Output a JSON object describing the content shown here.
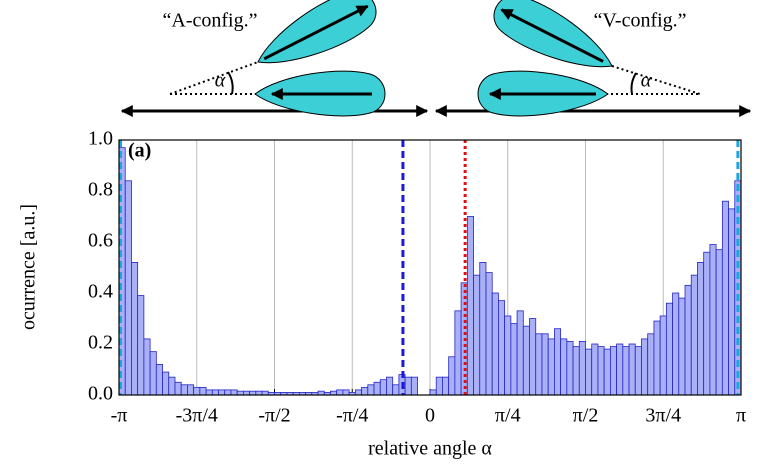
{
  "chart_data": {
    "type": "histogram",
    "panel_label": "(a)",
    "xlabel": "relative angle α",
    "ylabel": "ocurrence [a.u.]",
    "bins": [
      -1,
      -0.98,
      -0.96,
      -0.94,
      -0.92,
      -0.9,
      -0.88,
      -0.86,
      -0.84,
      -0.82,
      -0.8,
      -0.78,
      -0.76,
      -0.74,
      -0.72,
      -0.7,
      -0.68,
      -0.66,
      -0.64,
      -0.62,
      -0.6,
      -0.58,
      -0.56,
      -0.54,
      -0.52,
      -0.5,
      -0.48,
      -0.46,
      -0.44,
      -0.42,
      -0.4,
      -0.38,
      -0.36,
      -0.34,
      -0.32,
      -0.3,
      -0.28,
      -0.26,
      -0.24,
      -0.22,
      -0.2,
      -0.18,
      -0.16,
      -0.14,
      -0.12,
      -0.1,
      -0.08,
      -0.06,
      -0.04,
      -0.02,
      0,
      0.02,
      0.04,
      0.06,
      0.08,
      0.1,
      0.12,
      0.14,
      0.16,
      0.18,
      0.2,
      0.22,
      0.24,
      0.26,
      0.28,
      0.3,
      0.32,
      0.34,
      0.36,
      0.38,
      0.4,
      0.42,
      0.44,
      0.46,
      0.48,
      0.5,
      0.52,
      0.54,
      0.56,
      0.58,
      0.6,
      0.62,
      0.64,
      0.66,
      0.68,
      0.7,
      0.72,
      0.74,
      0.76,
      0.78,
      0.8,
      0.82,
      0.84,
      0.86,
      0.88,
      0.9,
      0.92,
      0.94,
      0.96,
      0.98,
      1
    ],
    "values": [
      0.97,
      0.84,
      0.52,
      0.39,
      0.22,
      0.17,
      0.12,
      0.09,
      0.07,
      0.05,
      0.04,
      0.04,
      0.03,
      0.03,
      0.02,
      0.02,
      0.02,
      0.02,
      0.02,
      0.015,
      0.015,
      0.015,
      0.015,
      0.015,
      0.01,
      0.01,
      0.01,
      0.01,
      0.01,
      0.01,
      0.01,
      0.01,
      0.015,
      0.01,
      0.015,
      0.02,
      0.02,
      0.01,
      0.02,
      0.03,
      0.04,
      0.05,
      0.06,
      0.07,
      0.04,
      0.08,
      0.07,
      0.07,
      0,
      0,
      0.02,
      0.07,
      0.07,
      0.15,
      0.33,
      0.44,
      0.7,
      0.47,
      0.52,
      0.48,
      0.4,
      0.37,
      0.31,
      0.28,
      0.33,
      0.27,
      0.3,
      0.24,
      0.24,
      0.22,
      0.26,
      0.22,
      0.21,
      0.19,
      0.21,
      0.18,
      0.2,
      0.19,
      0.18,
      0.19,
      0.2,
      0.19,
      0.2,
      0.19,
      0.22,
      0.24,
      0.29,
      0.31,
      0.36,
      0.4,
      0.38,
      0.43,
      0.47,
      0.52,
      0.56,
      0.59,
      0.57,
      0.76,
      0.73,
      0.84
    ],
    "color": "#aab0f5",
    "edge_color": "#2424c8",
    "xlim": [
      -1,
      1
    ],
    "ylim": [
      0,
      1
    ],
    "xticks": [
      {
        "value": -1,
        "label": "-π"
      },
      {
        "value": -0.75,
        "label": "-3π/4"
      },
      {
        "value": -0.5,
        "label": "-π/2"
      },
      {
        "value": -0.25,
        "label": "-π/4"
      },
      0,
      {
        "value": 0.25,
        "label": "π/4"
      },
      {
        "value": 0.5,
        "label": "π/2"
      },
      {
        "value": 0.75,
        "label": "3π/4"
      },
      {
        "value": 1,
        "label": "π"
      }
    ],
    "yticks": [
      {
        "value": 0,
        "label": "0.0"
      },
      {
        "value": 0.2,
        "label": "0.2"
      },
      {
        "value": 0.4,
        "label": "0.4"
      },
      {
        "value": 0.6,
        "label": "0.6"
      },
      {
        "value": 0.8,
        "label": "0.8"
      },
      {
        "value": 1,
        "label": "1.0"
      }
    ],
    "grid": "x",
    "vlines": [
      {
        "x": -0.995,
        "color": "#1aa7e0",
        "style": "dashed"
      },
      {
        "x": -0.087,
        "color": "#1a1adc",
        "style": "dashed"
      },
      {
        "x": 0.113,
        "color": "#e01010",
        "style": "dotted"
      },
      {
        "x": 0.99,
        "color": "#1aa7e0",
        "style": "dashed"
      }
    ]
  },
  "diagram": {
    "a_config": "“A-config.”",
    "v_config": "“V-config.”",
    "angle_symbol": "α"
  }
}
